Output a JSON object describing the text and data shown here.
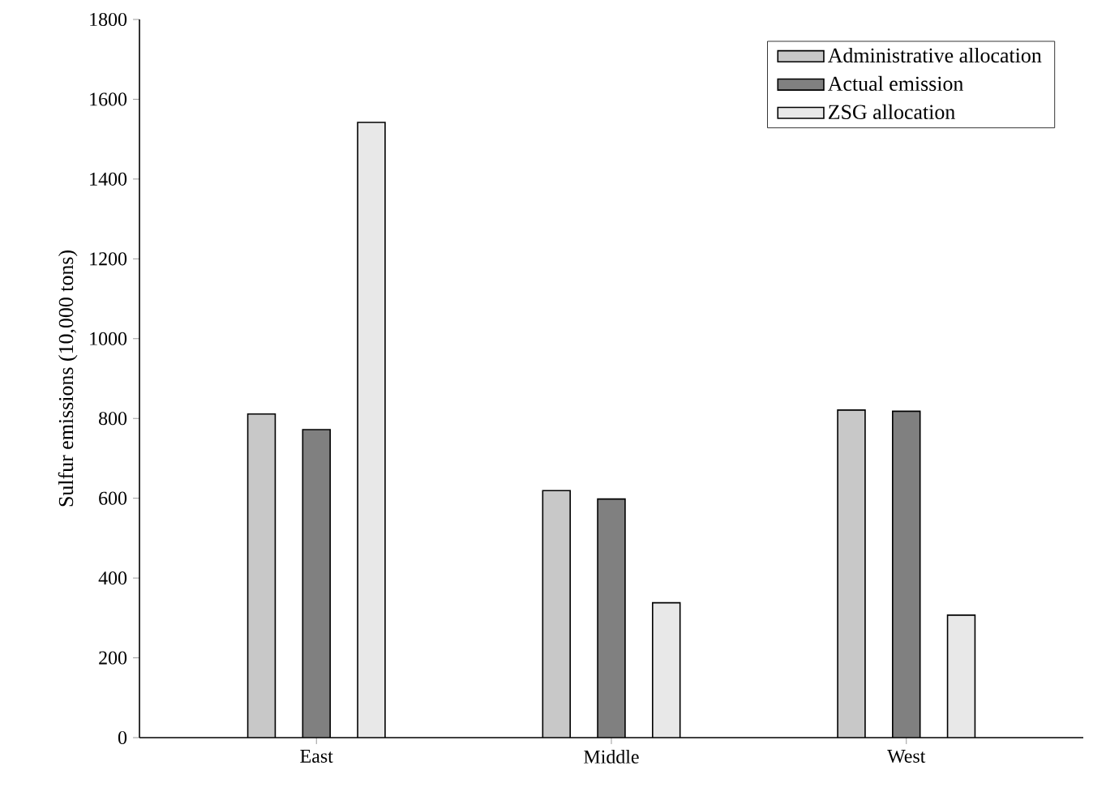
{
  "chart_data": {
    "type": "bar",
    "ylabel": "Sulfur emissions (10,000 tons)",
    "categories": [
      "East",
      "Middle",
      "West"
    ],
    "series": [
      {
        "name": "Administrative allocation",
        "color": "#c8c8c8",
        "values": [
          811,
          619,
          821
        ]
      },
      {
        "name": "Actual emission",
        "color": "#808080",
        "values": [
          772,
          598,
          818
        ]
      },
      {
        "name": "ZSG allocation",
        "color": "#e8e8e8",
        "values": [
          1542,
          338,
          307
        ]
      }
    ],
    "ylim": [
      0,
      1800
    ],
    "yticks": [
      0,
      200,
      400,
      600,
      800,
      1000,
      1200,
      1400,
      1600,
      1800
    ],
    "grid": false,
    "legend": "top right"
  }
}
